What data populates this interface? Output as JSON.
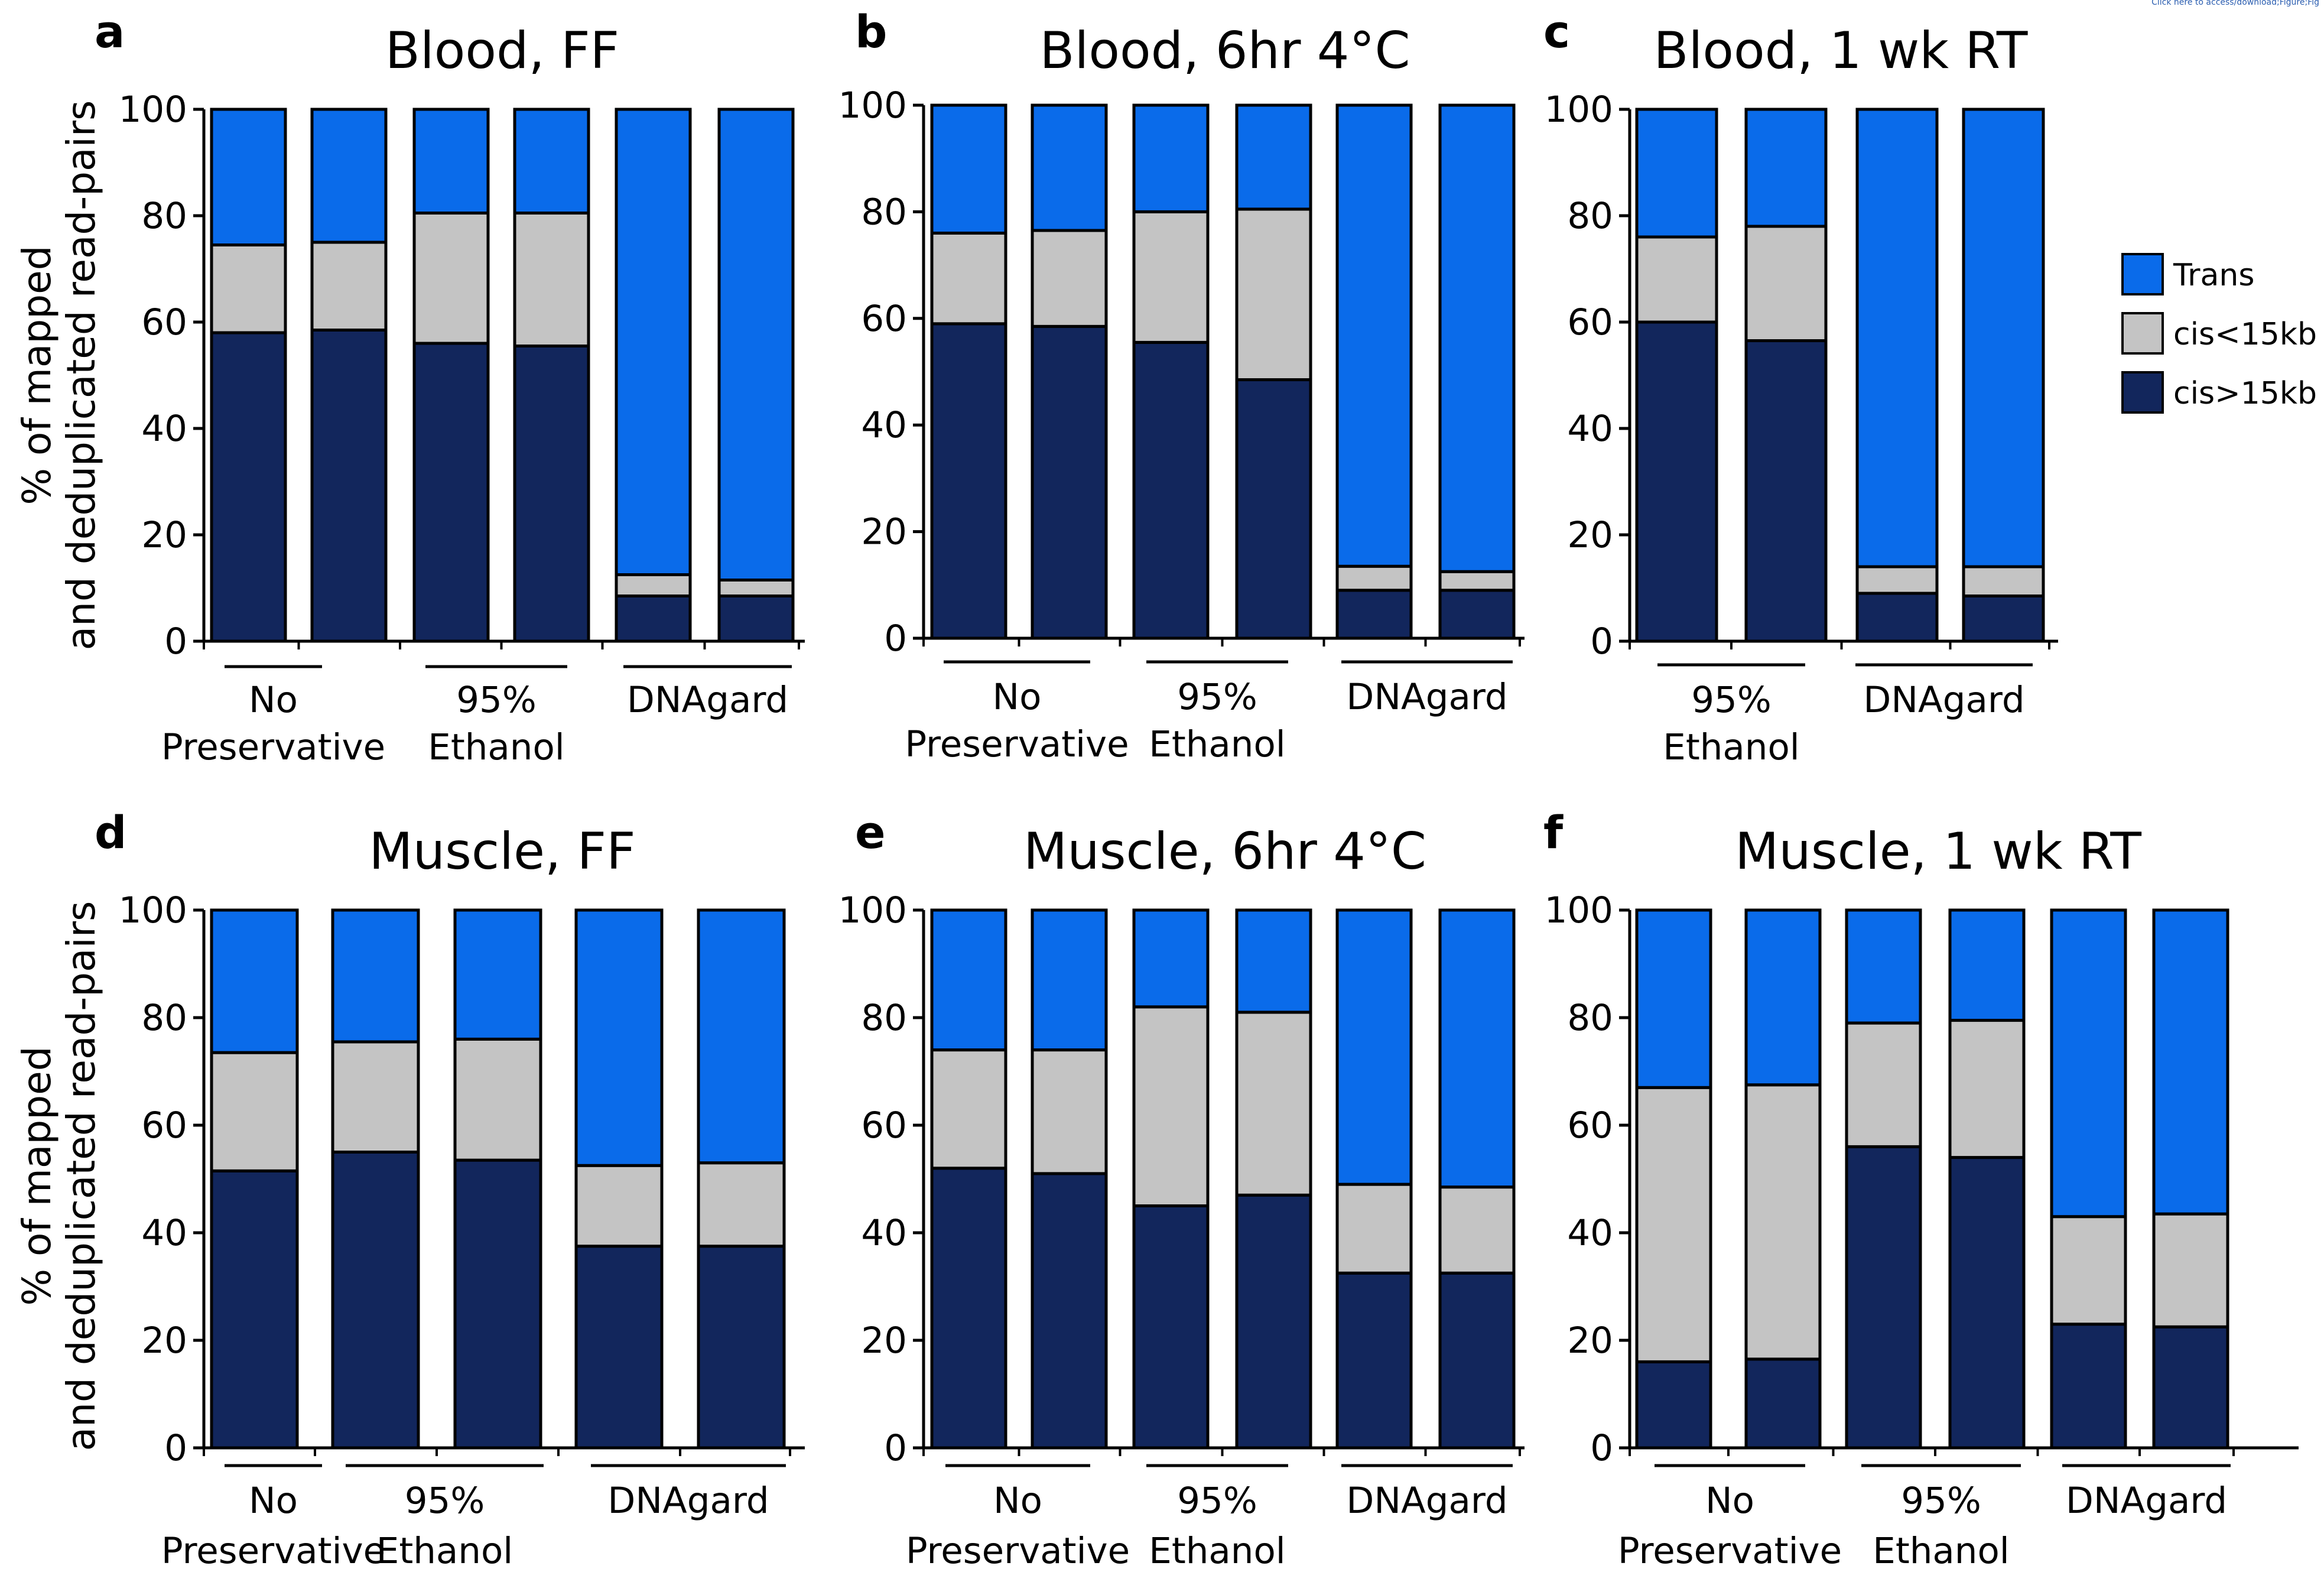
{
  "header_note": "Click here to access/download;Figure;Fig",
  "ylabel_lines": [
    "% of mapped",
    "and deduplicated read-pairs"
  ],
  "legend": [
    {
      "label": "Trans",
      "key": "trans"
    },
    {
      "label": "cis<15kb",
      "key": "cis_lt"
    },
    {
      "label": "cis>15kb",
      "key": "cis_gt"
    }
  ],
  "colors": {
    "trans": "#0a6bea",
    "cis_lt": "#c4c4c4",
    "cis_gt": "#12265c",
    "outline": "#000000"
  },
  "chart_data": [
    {
      "panel": "a",
      "type": "bar",
      "stacked": true,
      "title": "Blood, FF",
      "ylabel": "% of mapped and deduplicated read-pairs",
      "ylim": [
        0,
        100
      ],
      "yticks": [
        0,
        20,
        40,
        60,
        80,
        100
      ],
      "groups": [
        {
          "label_lines": [
            "No",
            "Preservative"
          ],
          "bars": 2
        },
        {
          "label_lines": [
            "95%",
            "Ethanol"
          ],
          "bars": 2
        },
        {
          "label_lines": [
            "DNAgard"
          ],
          "bars": 2
        }
      ],
      "series": [
        {
          "name": "cis>15kb",
          "key": "cis_gt",
          "values": [
            58,
            58.5,
            56,
            55.5,
            8.5,
            8.5
          ]
        },
        {
          "name": "cis<15kb",
          "key": "cis_lt",
          "values": [
            16.5,
            16.5,
            24.5,
            25,
            4,
            3
          ]
        },
        {
          "name": "Trans",
          "key": "trans",
          "values": [
            25.5,
            25,
            19.5,
            19.5,
            87.5,
            88.5
          ]
        }
      ]
    },
    {
      "panel": "b",
      "type": "bar",
      "stacked": true,
      "title": "Blood, 6hr 4°C",
      "ylim": [
        0,
        100
      ],
      "yticks": [
        0,
        20,
        40,
        60,
        80,
        100
      ],
      "groups": [
        {
          "label_lines": [
            "No",
            "Preservative"
          ],
          "bars": 2
        },
        {
          "label_lines": [
            "95%",
            "Ethanol"
          ],
          "bars": 2
        },
        {
          "label_lines": [
            "DNAgard"
          ],
          "bars": 2
        }
      ],
      "series": [
        {
          "name": "cis>15kb",
          "key": "cis_gt",
          "values": [
            59,
            58.5,
            55.5,
            48.5,
            9,
            9
          ]
        },
        {
          "name": "cis<15kb",
          "key": "cis_lt",
          "values": [
            17,
            18,
            24.5,
            32,
            4.5,
            3.5
          ]
        },
        {
          "name": "Trans",
          "key": "trans",
          "values": [
            24,
            23.5,
            20,
            19.5,
            86.5,
            87.5
          ]
        }
      ]
    },
    {
      "panel": "c",
      "type": "bar",
      "stacked": true,
      "title": "Blood, 1 wk RT",
      "ylim": [
        0,
        100
      ],
      "yticks": [
        0,
        20,
        40,
        60,
        80,
        100
      ],
      "groups": [
        {
          "label_lines": [
            "95%",
            "Ethanol"
          ],
          "bars": 2
        },
        {
          "label_lines": [
            "DNAgard"
          ],
          "bars": 2
        }
      ],
      "series": [
        {
          "name": "cis>15kb",
          "key": "cis_gt",
          "values": [
            60,
            56.5,
            9,
            8.5
          ]
        },
        {
          "name": "cis<15kb",
          "key": "cis_lt",
          "values": [
            16,
            21.5,
            5,
            5.5
          ]
        },
        {
          "name": "Trans",
          "key": "trans",
          "values": [
            24,
            22,
            86,
            86
          ]
        }
      ]
    },
    {
      "panel": "d",
      "type": "bar",
      "stacked": true,
      "title": "Muscle, FF",
      "ylabel": "% of mapped and deduplicated read-pairs",
      "ylim": [
        0,
        100
      ],
      "yticks": [
        0,
        20,
        40,
        60,
        80,
        100
      ],
      "groups": [
        {
          "label_lines": [
            "No",
            "Preservative"
          ],
          "bars": 1
        },
        {
          "label_lines": [
            "95%",
            "Ethanol"
          ],
          "bars": 2
        },
        {
          "label_lines": [
            "DNAgard"
          ],
          "bars": 2
        }
      ],
      "series": [
        {
          "name": "cis>15kb",
          "key": "cis_gt",
          "values": [
            51.5,
            55,
            53.5,
            37.5,
            37.5
          ]
        },
        {
          "name": "cis<15kb",
          "key": "cis_lt",
          "values": [
            22,
            20.5,
            22.5,
            15,
            15.5
          ]
        },
        {
          "name": "Trans",
          "key": "trans",
          "values": [
            26.5,
            24.5,
            24,
            47.5,
            47
          ]
        }
      ]
    },
    {
      "panel": "e",
      "type": "bar",
      "stacked": true,
      "title": "Muscle, 6hr 4°C",
      "ylim": [
        0,
        100
      ],
      "yticks": [
        0,
        20,
        40,
        60,
        80,
        100
      ],
      "groups": [
        {
          "label_lines": [
            "No",
            "Preservative"
          ],
          "bars": 2
        },
        {
          "label_lines": [
            "95%",
            "Ethanol"
          ],
          "bars": 2
        },
        {
          "label_lines": [
            "DNAgard"
          ],
          "bars": 2
        }
      ],
      "series": [
        {
          "name": "cis>15kb",
          "key": "cis_gt",
          "values": [
            52,
            51,
            45,
            47,
            32.5,
            32.5
          ]
        },
        {
          "name": "cis<15kb",
          "key": "cis_lt",
          "values": [
            22,
            23,
            37,
            34,
            16.5,
            16
          ]
        },
        {
          "name": "Trans",
          "key": "trans",
          "values": [
            26,
            26,
            18,
            19,
            51,
            51.5
          ]
        }
      ]
    },
    {
      "panel": "f",
      "type": "bar",
      "stacked": true,
      "title": "Muscle, 1 wk RT",
      "ylim": [
        0,
        100
      ],
      "yticks": [
        0,
        20,
        40,
        60,
        80,
        100
      ],
      "groups": [
        {
          "label_lines": [
            "No",
            "Preservative"
          ],
          "bars": 2
        },
        {
          "label_lines": [
            "95%",
            "Ethanol"
          ],
          "bars": 2
        },
        {
          "label_lines": [
            "DNAgard"
          ],
          "bars": 2
        }
      ],
      "series": [
        {
          "name": "cis>15kb",
          "key": "cis_gt",
          "values": [
            16,
            16.5,
            56,
            54,
            23,
            22.5
          ]
        },
        {
          "name": "cis<15kb",
          "key": "cis_lt",
          "values": [
            51,
            51,
            23,
            25.5,
            20,
            21
          ]
        },
        {
          "name": "Trans",
          "key": "trans",
          "values": [
            33,
            32.5,
            21,
            20.5,
            57,
            56.5
          ]
        }
      ]
    }
  ]
}
